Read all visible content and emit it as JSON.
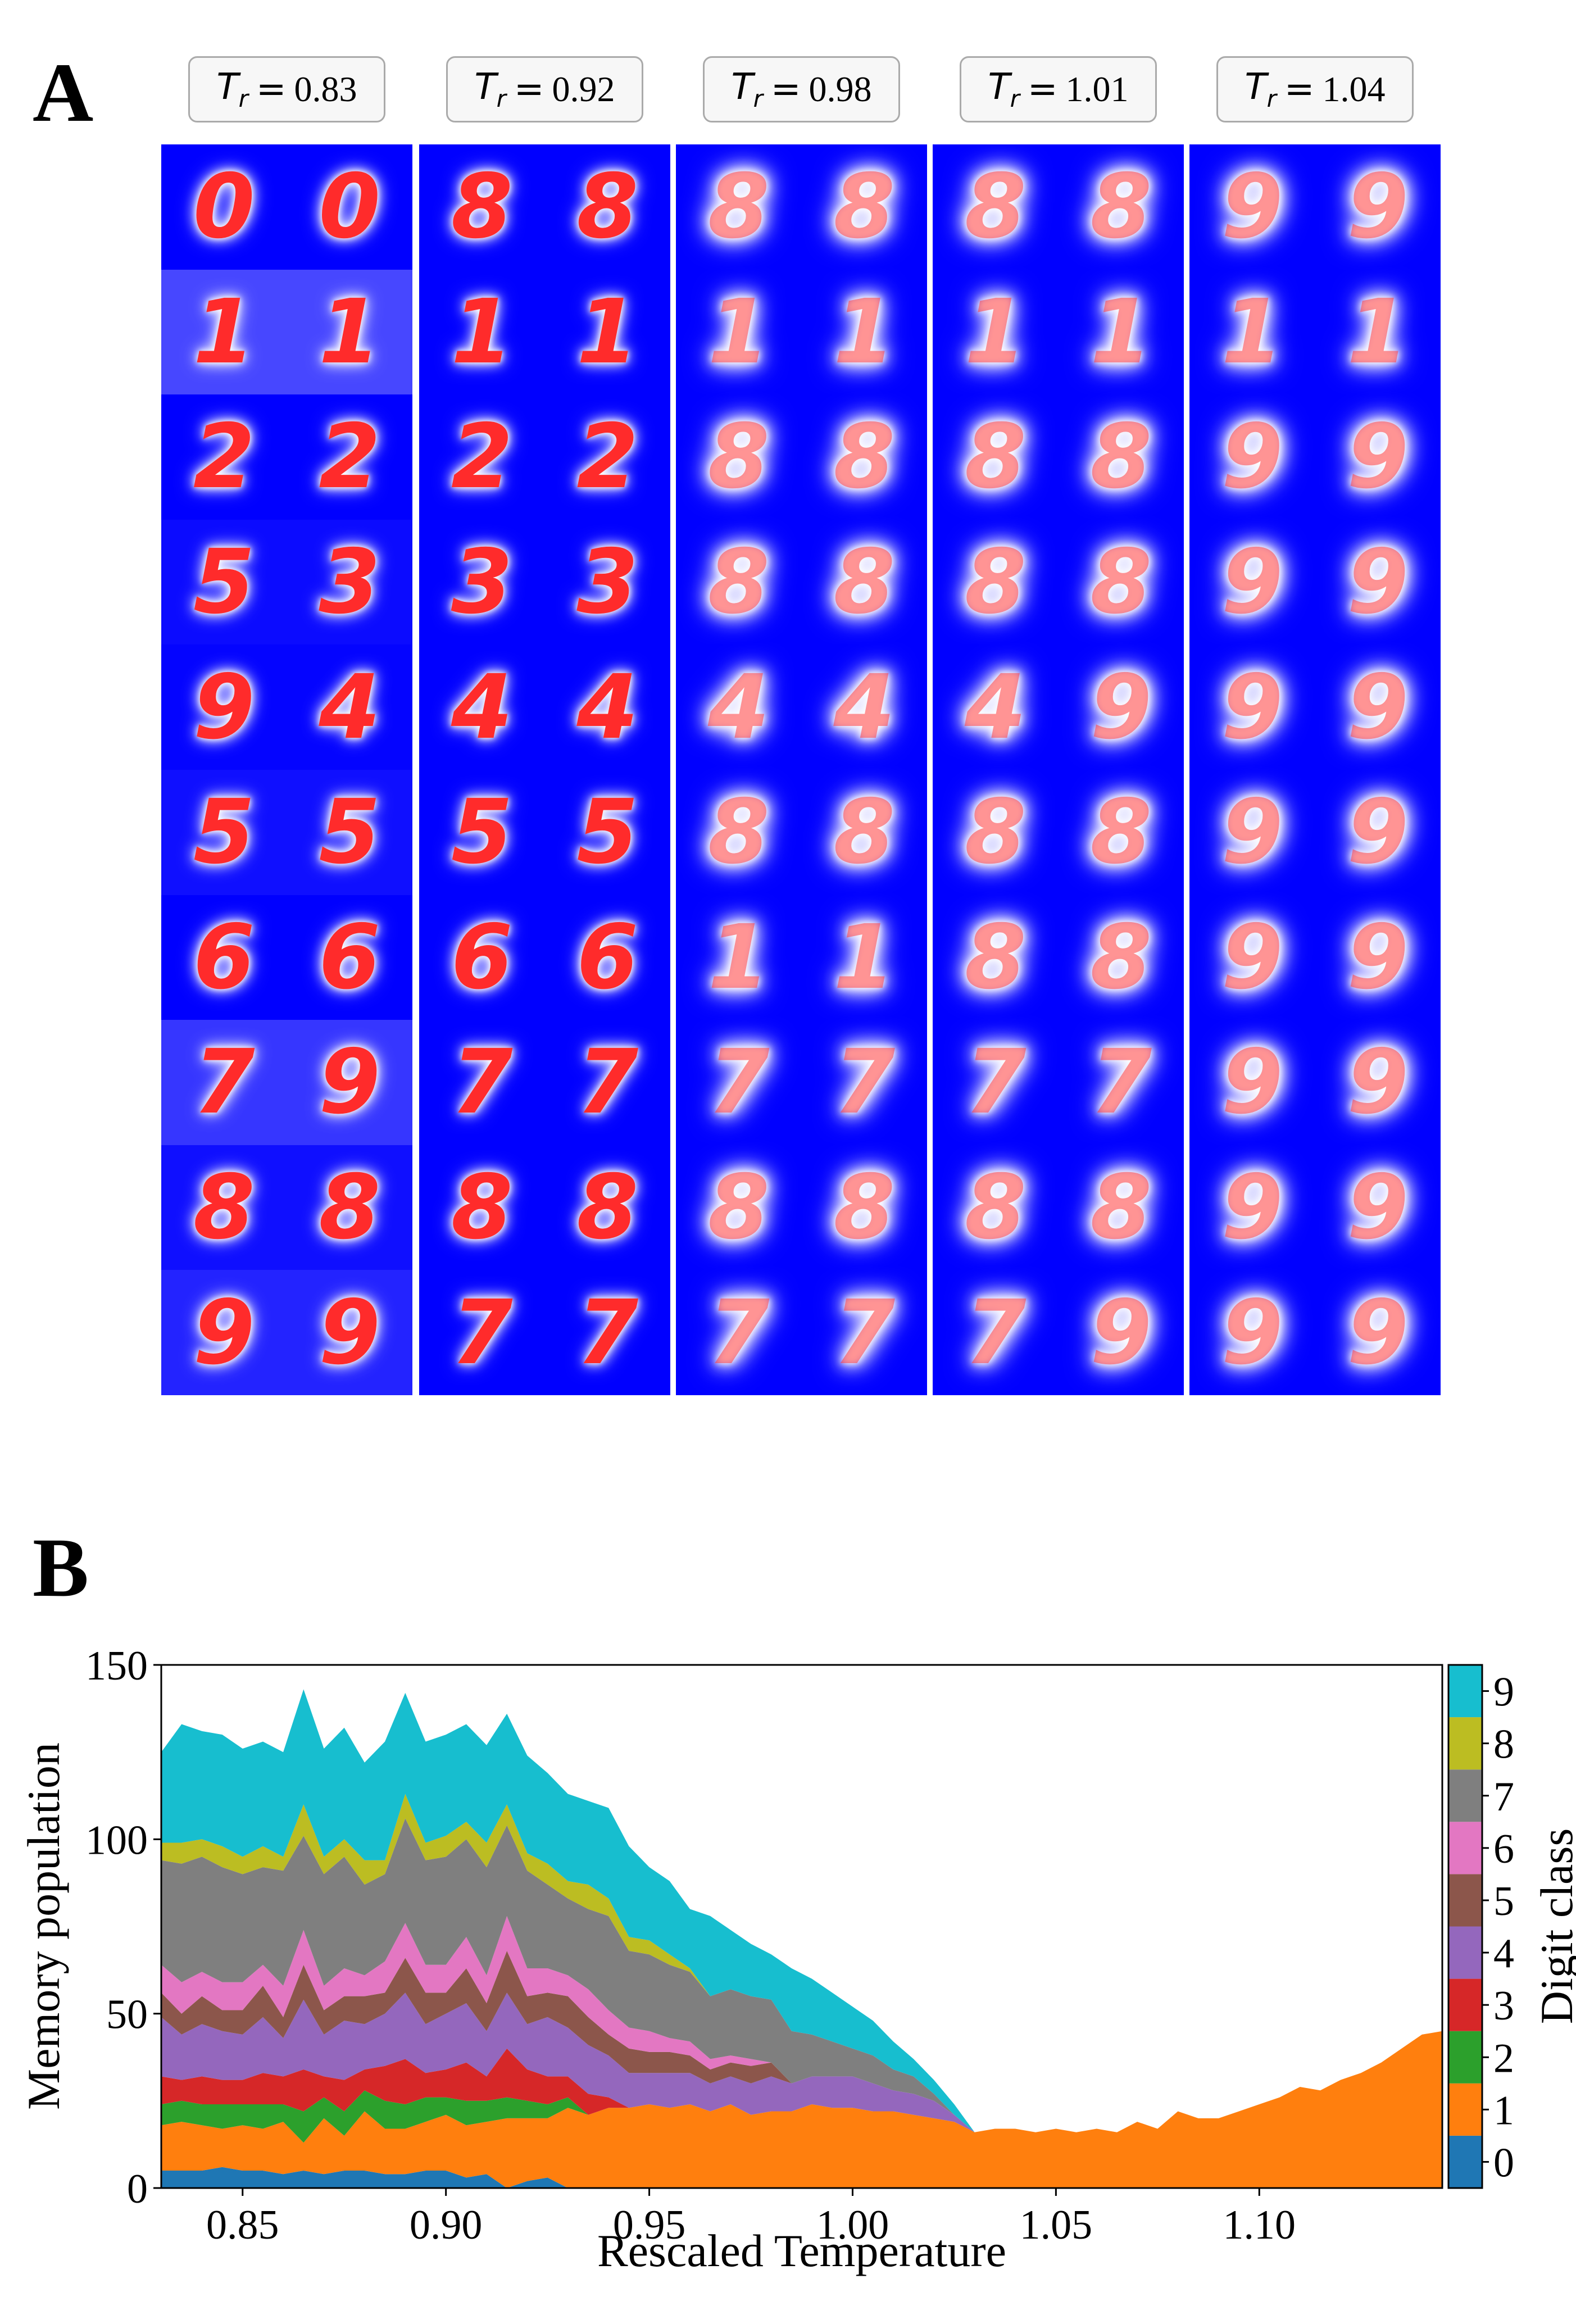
{
  "panel_a": {
    "letter": "A",
    "temperature_symbol": "T",
    "temperature_subscript": "r",
    "equals": "=",
    "columns": [
      {
        "temperature": "0.83",
        "digits": [
          [
            "0",
            "0"
          ],
          [
            "1",
            "1"
          ],
          [
            "2",
            "2"
          ],
          [
            "5",
            "3"
          ],
          [
            "9",
            "4"
          ],
          [
            "5",
            "5"
          ],
          [
            "6",
            "6"
          ],
          [
            "7",
            "9"
          ],
          [
            "8",
            "8"
          ],
          [
            "9",
            "9"
          ]
        ]
      },
      {
        "temperature": "0.92",
        "digits": [
          [
            "8",
            "8"
          ],
          [
            "1",
            "1"
          ],
          [
            "2",
            "2"
          ],
          [
            "3",
            "3"
          ],
          [
            "4",
            "4"
          ],
          [
            "5",
            "5"
          ],
          [
            "6",
            "6"
          ],
          [
            "7",
            "7"
          ],
          [
            "8",
            "8"
          ],
          [
            "7",
            "7"
          ]
        ]
      },
      {
        "temperature": "0.98",
        "digits": [
          [
            "8",
            "8"
          ],
          [
            "1",
            "1"
          ],
          [
            "8",
            "8"
          ],
          [
            "8",
            "8"
          ],
          [
            "4",
            "4"
          ],
          [
            "8",
            "8"
          ],
          [
            "1",
            "1"
          ],
          [
            "7",
            "7"
          ],
          [
            "8",
            "8"
          ],
          [
            "7",
            "7"
          ]
        ]
      },
      {
        "temperature": "1.01",
        "digits": [
          [
            "8",
            "8"
          ],
          [
            "1",
            "1"
          ],
          [
            "8",
            "8"
          ],
          [
            "8",
            "8"
          ],
          [
            "4",
            "9"
          ],
          [
            "8",
            "8"
          ],
          [
            "8",
            "8"
          ],
          [
            "7",
            "7"
          ],
          [
            "8",
            "8"
          ],
          [
            "7",
            "9"
          ]
        ]
      },
      {
        "temperature": "1.04",
        "digits": [
          [
            "9",
            "9"
          ],
          [
            "1",
            "1"
          ],
          [
            "9",
            "9"
          ],
          [
            "9",
            "9"
          ],
          [
            "9",
            "9"
          ],
          [
            "9",
            "9"
          ],
          [
            "9",
            "9"
          ],
          [
            "9",
            "9"
          ],
          [
            "9",
            "9"
          ],
          [
            "9",
            "9"
          ]
        ]
      }
    ],
    "colors": {
      "background": "#0000ff",
      "stroke": "#ff2b2b",
      "halo": "#ffffff"
    }
  },
  "panel_b": {
    "letter": "B",
    "chart_data": {
      "type": "area",
      "stacked": true,
      "xlabel": "Rescaled Temperature",
      "ylabel": "Memory population",
      "xlim": [
        0.83,
        1.145
      ],
      "ylim": [
        0,
        150
      ],
      "xticks": [
        "0.85",
        "0.90",
        "0.95",
        "1.00",
        "1.05",
        "1.10"
      ],
      "xtick_values": [
        0.85,
        0.9,
        0.95,
        1.0,
        1.05,
        1.1
      ],
      "yticks": [
        "0",
        "50",
        "100",
        "150"
      ],
      "ytick_values": [
        0,
        50,
        100,
        150
      ],
      "colorbar_label": "Digit class",
      "colorbar_ticks": [
        "0",
        "1",
        "2",
        "3",
        "4",
        "5",
        "6",
        "7",
        "8",
        "9"
      ],
      "x": [
        0.83,
        0.835,
        0.84,
        0.845,
        0.85,
        0.855,
        0.86,
        0.865,
        0.87,
        0.875,
        0.88,
        0.885,
        0.89,
        0.895,
        0.9,
        0.905,
        0.91,
        0.915,
        0.92,
        0.925,
        0.93,
        0.935,
        0.94,
        0.945,
        0.95,
        0.955,
        0.96,
        0.965,
        0.97,
        0.975,
        0.98,
        0.985,
        0.99,
        0.995,
        1.0,
        1.005,
        1.01,
        1.015,
        1.02,
        1.025,
        1.03,
        1.035,
        1.04,
        1.045,
        1.05,
        1.055,
        1.06,
        1.065,
        1.07,
        1.075,
        1.08,
        1.085,
        1.09,
        1.095,
        1.1,
        1.105,
        1.11,
        1.115,
        1.12,
        1.125,
        1.13,
        1.135,
        1.14,
        1.145
      ],
      "totals": [
        125,
        133,
        131,
        130,
        126,
        128,
        125,
        143,
        126,
        132,
        122,
        128,
        142,
        128,
        130,
        133,
        127,
        136,
        124,
        119,
        113,
        111,
        109,
        98,
        92,
        88,
        80,
        78,
        74,
        70,
        67,
        63,
        60,
        56,
        52,
        48,
        42,
        37,
        31,
        24,
        16,
        17,
        17,
        16,
        17,
        16,
        17,
        16,
        19,
        17,
        22,
        20,
        20,
        22,
        24,
        26,
        29,
        28,
        31,
        33,
        36,
        40,
        44,
        45
      ],
      "series": [
        {
          "name": "0",
          "color": "#1f77b4",
          "values": [
            5,
            5,
            5,
            6,
            5,
            5,
            4,
            5,
            4,
            5,
            5,
            4,
            4,
            5,
            5,
            3,
            4,
            0,
            2,
            3,
            0,
            0,
            0,
            0,
            0,
            0,
            0,
            0,
            0,
            0,
            0,
            0,
            0,
            0,
            0,
            0,
            0,
            0,
            0,
            0,
            0,
            0,
            0,
            0,
            0,
            0,
            0,
            0,
            0,
            0,
            0,
            0,
            0,
            0,
            0,
            0,
            0,
            0,
            0,
            0,
            0,
            0,
            0,
            0
          ]
        },
        {
          "name": "1",
          "color": "#ff7f0e",
          "values": [
            13,
            14,
            13,
            11,
            13,
            12,
            15,
            8,
            16,
            10,
            17,
            13,
            13,
            14,
            16,
            15,
            15,
            20,
            18,
            17,
            23,
            21,
            23,
            23,
            24,
            23,
            24,
            22,
            24,
            21,
            22,
            22,
            24,
            23,
            23,
            22,
            22,
            21,
            20,
            19,
            16,
            17,
            17,
            16,
            17,
            16,
            17,
            16,
            19,
            17,
            22,
            20,
            20,
            22,
            24,
            26,
            29,
            28,
            31,
            33,
            36,
            40,
            44,
            45
          ]
        },
        {
          "name": "2",
          "color": "#2ca02c",
          "values": [
            6,
            6,
            6,
            7,
            6,
            7,
            5,
            9,
            6,
            7,
            6,
            8,
            7,
            7,
            5,
            7,
            6,
            6,
            5,
            4,
            3,
            0,
            0,
            0,
            0,
            0,
            0,
            0,
            0,
            0,
            0,
            0,
            0,
            0,
            0,
            0,
            0,
            0,
            0,
            0,
            0,
            0,
            0,
            0,
            0,
            0,
            0,
            0,
            0,
            0,
            0,
            0,
            0,
            0,
            0,
            0,
            0,
            0,
            0,
            0,
            0,
            0,
            0,
            0
          ]
        },
        {
          "name": "3",
          "color": "#d62728",
          "values": [
            8,
            6,
            8,
            7,
            7,
            9,
            8,
            12,
            6,
            9,
            6,
            10,
            13,
            7,
            8,
            11,
            7,
            14,
            9,
            8,
            6,
            6,
            3,
            0,
            0,
            0,
            0,
            0,
            0,
            0,
            0,
            0,
            0,
            0,
            0,
            0,
            0,
            0,
            0,
            0,
            0,
            0,
            0,
            0,
            0,
            0,
            0,
            0,
            0,
            0,
            0,
            0,
            0,
            0,
            0,
            0,
            0,
            0,
            0,
            0,
            0,
            0,
            0,
            0
          ]
        },
        {
          "name": "4",
          "color": "#9467bd",
          "values": [
            17,
            13,
            15,
            14,
            13,
            16,
            11,
            20,
            12,
            17,
            13,
            15,
            19,
            14,
            16,
            17,
            13,
            16,
            13,
            17,
            14,
            14,
            12,
            10,
            9,
            10,
            9,
            8,
            8,
            9,
            10,
            8,
            8,
            9,
            9,
            8,
            6,
            6,
            5,
            2,
            0,
            0,
            0,
            0,
            0,
            0,
            0,
            0,
            0,
            0,
            0,
            0,
            0,
            0,
            0,
            0,
            0,
            0,
            0,
            0,
            0,
            0,
            0,
            0
          ]
        },
        {
          "name": "5",
          "color": "#8c564b",
          "values": [
            7,
            6,
            8,
            6,
            7,
            9,
            6,
            10,
            7,
            7,
            8,
            6,
            10,
            9,
            6,
            10,
            8,
            12,
            8,
            7,
            9,
            8,
            6,
            7,
            6,
            6,
            5,
            4,
            4,
            5,
            4,
            0,
            0,
            0,
            0,
            0,
            0,
            0,
            0,
            0,
            0,
            0,
            0,
            0,
            0,
            0,
            0,
            0,
            0,
            0,
            0,
            0,
            0,
            0,
            0,
            0,
            0,
            0,
            0,
            0,
            0,
            0,
            0,
            0
          ]
        },
        {
          "name": "6",
          "color": "#e377c2",
          "values": [
            8,
            9,
            7,
            8,
            8,
            6,
            9,
            10,
            7,
            8,
            6,
            9,
            10,
            8,
            8,
            9,
            8,
            10,
            8,
            7,
            6,
            8,
            7,
            6,
            6,
            4,
            4,
            3,
            2,
            2,
            0,
            0,
            0,
            0,
            0,
            0,
            0,
            0,
            0,
            0,
            0,
            0,
            0,
            0,
            0,
            0,
            0,
            0,
            0,
            0,
            0,
            0,
            0,
            0,
            0,
            0,
            0,
            0,
            0,
            0,
            0,
            0,
            0,
            0
          ]
        },
        {
          "name": "7",
          "color": "#7f7f7f",
          "values": [
            30,
            34,
            33,
            33,
            31,
            28,
            33,
            27,
            32,
            32,
            26,
            25,
            30,
            30,
            31,
            28,
            31,
            26,
            28,
            24,
            22,
            23,
            27,
            22,
            22,
            21,
            20,
            18,
            19,
            18,
            18,
            15,
            12,
            10,
            8,
            8,
            6,
            5,
            2,
            0,
            0,
            0,
            0,
            0,
            0,
            0,
            0,
            0,
            0,
            0,
            0,
            0,
            0,
            0,
            0,
            0,
            0,
            0,
            0,
            0,
            0,
            0,
            0,
            0
          ]
        },
        {
          "name": "8",
          "color": "#bcbd22",
          "values": [
            5,
            6,
            5,
            6,
            5,
            6,
            4,
            9,
            5,
            5,
            7,
            4,
            7,
            5,
            6,
            5,
            7,
            6,
            5,
            6,
            5,
            7,
            5,
            4,
            4,
            3,
            1,
            0,
            0,
            0,
            0,
            0,
            0,
            0,
            0,
            0,
            0,
            0,
            0,
            0,
            0,
            0,
            0,
            0,
            0,
            0,
            0,
            0,
            0,
            0,
            0,
            0,
            0,
            0,
            0,
            0,
            0,
            0,
            0,
            0,
            0,
            0,
            0,
            0
          ]
        },
        {
          "name": "9",
          "color": "#17becf",
          "values": [
            26,
            34,
            31,
            32,
            31,
            30,
            30,
            33,
            31,
            32,
            28,
            34,
            29,
            29,
            29,
            28,
            28,
            26,
            28,
            26,
            25,
            24,
            26,
            26,
            21,
            21,
            17,
            23,
            17,
            15,
            13,
            18,
            16,
            14,
            12,
            10,
            8,
            5,
            4,
            3,
            0,
            0,
            0,
            0,
            0,
            0,
            0,
            0,
            0,
            0,
            0,
            0,
            0,
            0,
            0,
            0,
            0,
            0,
            0,
            0,
            0,
            0,
            0,
            0
          ]
        }
      ]
    }
  }
}
